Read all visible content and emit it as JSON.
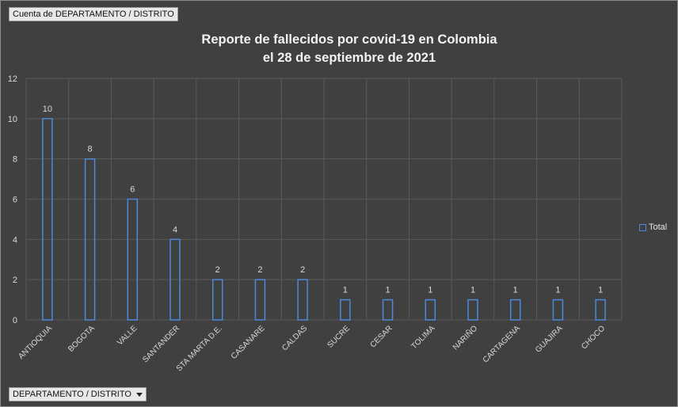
{
  "pivot": {
    "value_field": "Cuenta de DEPARTAMENTO / DISTRITO",
    "axis_field": "DEPARTAMENTO / DISTRITO"
  },
  "chart_data": {
    "type": "bar",
    "title_line1": "Reporte de fallecidos por covid-19 en Colombia",
    "title_line2": "el 28 de septiembre de 2021",
    "categories": [
      "ANTIOQUIA",
      "BOGOTA",
      "VALLE",
      "SANTANDER",
      "STA MARTA D.E.",
      "CASANARE",
      "CALDAS",
      "SUCRE",
      "CESAR",
      "TOLIMA",
      "NARIÑO",
      "CARTAGENA",
      "GUAJIRA",
      "CHOCO"
    ],
    "series": [
      {
        "name": "Total",
        "values": [
          10,
          8,
          6,
          4,
          2,
          2,
          2,
          1,
          1,
          1,
          1,
          1,
          1,
          1
        ]
      }
    ],
    "yticks": [
      "0",
      "2",
      "4",
      "6",
      "8",
      "10",
      "12"
    ],
    "ylim": [
      0,
      12
    ],
    "grid": true,
    "legend_position": "right",
    "colors": {
      "background": "#404040",
      "bar_outline": "#4d88d9",
      "grid": "#5a5a5a",
      "text": "#d9d9d9"
    }
  }
}
